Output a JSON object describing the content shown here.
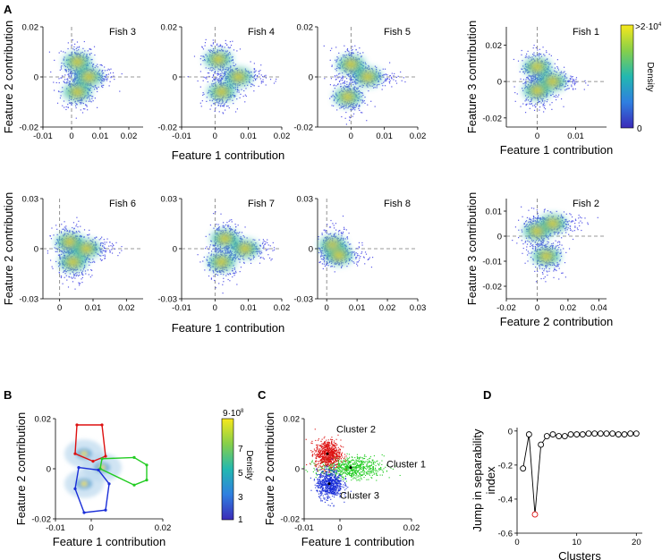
{
  "figure": {
    "panel_labels": {
      "A": "A",
      "B": "B",
      "C": "C",
      "D": "D"
    },
    "colorbar_A": {
      "label": "Density",
      "max_label": ">2",
      "max_exp": "·10",
      "max_pow": "4",
      "min_label": "0"
    },
    "colorbar_B": {
      "label": "Density",
      "ticks": [
        "9",
        "7",
        "5",
        "3",
        "1"
      ],
      "exp_label": "·10",
      "exp_pow": "8"
    },
    "colors": {
      "scatter_point": "#5a5ae8",
      "density_low": "#3b4cc0",
      "density_mid": "#27b8b0",
      "density_high": "#f2e51d",
      "cluster_1": "#22cc22",
      "cluster_2": "#dd1111",
      "cluster_3": "#1a2ed8",
      "highlight": "#dd1111"
    }
  },
  "chart_data": [
    {
      "id": "fish3",
      "type": "scatter",
      "title": "Fish 3",
      "ylabel": "Feature 2 contribution",
      "xlabel": "",
      "xlim": [
        -0.01,
        0.025
      ],
      "ylim": [
        -0.02,
        0.02
      ],
      "xticks": [
        "-0.01",
        "0",
        "0.01",
        "0.02"
      ],
      "yticks": [
        "0.02",
        "0",
        "-0.02"
      ],
      "hotspots": [
        {
          "x": 0.002,
          "y": 0.006
        },
        {
          "x": 0.006,
          "y": 0.0
        },
        {
          "x": 0.002,
          "y": -0.006
        }
      ]
    },
    {
      "id": "fish4",
      "type": "scatter",
      "title": "Fish 4",
      "ylabel": "",
      "xlabel": "",
      "xlim": [
        -0.01,
        0.02
      ],
      "ylim": [
        -0.02,
        0.02
      ],
      "xticks": [
        "-0.01",
        "0",
        "0.01",
        "0.02"
      ],
      "yticks": [
        "0.02",
        "0",
        "-0.02"
      ],
      "hotspots": [
        {
          "x": 0.001,
          "y": 0.007
        },
        {
          "x": 0.007,
          "y": 0.0
        },
        {
          "x": 0.002,
          "y": -0.006
        }
      ]
    },
    {
      "id": "fish5",
      "type": "scatter",
      "title": "Fish 5",
      "ylabel": "",
      "xlabel": "",
      "xlim": [
        -0.01,
        0.02
      ],
      "ylim": [
        -0.02,
        0.02
      ],
      "xticks": [
        "0",
        "0.01",
        "0.02"
      ],
      "yticks": [
        "0.02",
        "0",
        "-0.02"
      ],
      "hotspots": [
        {
          "x": 0.0,
          "y": 0.005
        },
        {
          "x": 0.005,
          "y": 0.0
        },
        {
          "x": -0.001,
          "y": -0.008
        }
      ]
    },
    {
      "id": "fish1",
      "type": "scatter",
      "title": "Fish 1",
      "ylabel": "Feature 3 contribution",
      "xlabel": "Feature 1 contribution",
      "xlim": [
        -0.008,
        0.018
      ],
      "ylim": [
        -0.025,
        0.03
      ],
      "xticks": [
        "0",
        "0.01"
      ],
      "yticks": [
        "0.02",
        "0",
        "-0.02"
      ],
      "hotspots": [
        {
          "x": 0.0,
          "y": 0.008
        },
        {
          "x": 0.004,
          "y": 0.0
        },
        {
          "x": 0.0,
          "y": -0.005
        }
      ]
    },
    {
      "id": "fish6",
      "type": "scatter",
      "title": "Fish 6",
      "ylabel": "Feature 2 contribution",
      "xlabel": "",
      "xlim": [
        -0.005,
        0.025
      ],
      "ylim": [
        -0.03,
        0.03
      ],
      "xticks": [
        "0",
        "0.01",
        "0.02"
      ],
      "yticks": [
        "0.03",
        "0",
        "-0.03"
      ],
      "hotspots": [
        {
          "x": 0.003,
          "y": 0.004
        },
        {
          "x": 0.008,
          "y": 0.0
        },
        {
          "x": 0.004,
          "y": -0.008
        }
      ]
    },
    {
      "id": "fish7",
      "type": "scatter",
      "title": "Fish 7",
      "ylabel": "",
      "xlabel": "",
      "xlim": [
        -0.01,
        0.02
      ],
      "ylim": [
        -0.03,
        0.03
      ],
      "xticks": [
        "-0.01",
        "0",
        "0.01",
        "0.02"
      ],
      "yticks": [
        "0.03",
        "0",
        "-0.03"
      ],
      "hotspots": [
        {
          "x": 0.003,
          "y": 0.006
        },
        {
          "x": 0.009,
          "y": 0.0
        },
        {
          "x": 0.002,
          "y": -0.008
        }
      ]
    },
    {
      "id": "fish8",
      "type": "scatter",
      "title": "Fish 8",
      "ylabel": "",
      "xlabel": "",
      "xlim": [
        -0.003,
        0.03
      ],
      "ylim": [
        -0.03,
        0.03
      ],
      "xticks": [
        "0",
        "0.01",
        "0.02",
        "0.03"
      ],
      "yticks": [
        "0.03",
        "0",
        "-0.03"
      ],
      "hotspots": [
        {
          "x": 0.002,
          "y": 0.002
        },
        {
          "x": 0.004,
          "y": -0.004
        }
      ]
    },
    {
      "id": "fish2",
      "type": "scatter",
      "title": "Fish 2",
      "ylabel": "Feature 3 contribution",
      "xlabel": "Feature 2 contribution",
      "xlim": [
        -0.02,
        0.045
      ],
      "ylim": [
        -0.025,
        0.015
      ],
      "xticks": [
        "-0.02",
        "0",
        "0.02",
        "0.04"
      ],
      "yticks": [
        "0.01",
        "0",
        "-0.01",
        "-0.02"
      ],
      "hotspots": [
        {
          "x": 0.0,
          "y": 0.002
        },
        {
          "x": 0.01,
          "y": 0.005
        },
        {
          "x": 0.006,
          "y": -0.008
        }
      ]
    },
    {
      "id": "rowlabel_A1",
      "type": "label",
      "xlabel": "Feature 1 contribution"
    },
    {
      "id": "rowlabel_A2",
      "type": "label",
      "xlabel": "Feature 1 contribution"
    },
    {
      "id": "panelB",
      "type": "scatter",
      "title": "",
      "ylabel": "Feature 2 contribution",
      "xlabel": "Feature 1 contribution",
      "xlim": [
        -0.01,
        0.02
      ],
      "ylim": [
        -0.02,
        0.02
      ],
      "xticks": [
        "-0.01",
        "0",
        "0.02"
      ],
      "yticks": [
        "0.02",
        "0",
        "-0.02"
      ],
      "polygons": [
        {
          "name": "",
          "color": "#dd1111",
          "points": [
            [
              -0.004,
              0.0175
            ],
            [
              0.003,
              0.0175
            ],
            [
              0.004,
              0.005
            ],
            [
              0.0005,
              0.003
            ],
            [
              -0.0045,
              0.006
            ]
          ]
        },
        {
          "name": "",
          "color": "#22cc22",
          "points": [
            [
              0.003,
              0.004
            ],
            [
              0.012,
              0.0045
            ],
            [
              0.0155,
              0.0015
            ],
            [
              0.0155,
              -0.0045
            ],
            [
              0.012,
              -0.0065
            ],
            [
              0.0025,
              0.0
            ]
          ]
        },
        {
          "name": "",
          "color": "#1a2ed8",
          "points": [
            [
              -0.0035,
              0.0005
            ],
            [
              0.002,
              -0.0005
            ],
            [
              0.005,
              -0.006
            ],
            [
              0.004,
              -0.0165
            ],
            [
              -0.002,
              -0.0175
            ],
            [
              -0.0045,
              -0.008
            ]
          ]
        }
      ]
    },
    {
      "id": "panelC",
      "type": "scatter",
      "title": "",
      "ylabel": "Feature 2 contribution",
      "xlabel": "Feature 1 contribution",
      "xlim": [
        -0.01,
        0.02
      ],
      "ylim": [
        -0.02,
        0.02
      ],
      "xticks": [
        "-0.01",
        "0",
        "0.02"
      ],
      "yticks": [
        "0.02",
        "0",
        "-0.02"
      ],
      "series": [
        {
          "name": "Cluster 1",
          "color": "#22cc22",
          "center": [
            0.003,
            0.0005
          ]
        },
        {
          "name": "Cluster 2",
          "color": "#dd1111",
          "center": [
            -0.0035,
            0.006
          ]
        },
        {
          "name": "Cluster 3",
          "color": "#1a2ed8",
          "center": [
            -0.003,
            -0.006
          ]
        }
      ]
    },
    {
      "id": "panelD",
      "type": "line",
      "title": "",
      "ylabel": "Jump in separability index",
      "ylabel_lines": [
        "Jump in separability",
        "index"
      ],
      "xlabel": "Clusters",
      "xlim": [
        0,
        21
      ],
      "ylim": [
        -0.6,
        0.02
      ],
      "xticks": [
        "0",
        "10",
        "20"
      ],
      "yticks": [
        "0",
        "-0.2",
        "-0.4",
        "-0.6"
      ],
      "x": [
        1,
        2,
        3,
        4,
        5,
        6,
        7,
        8,
        9,
        10,
        11,
        12,
        13,
        14,
        15,
        16,
        17,
        18,
        19,
        20
      ],
      "y": [
        -0.22,
        -0.02,
        -0.49,
        -0.08,
        -0.03,
        -0.02,
        -0.03,
        -0.03,
        -0.02,
        -0.02,
        -0.02,
        -0.015,
        -0.015,
        -0.015,
        -0.015,
        -0.015,
        -0.02,
        -0.02,
        -0.015,
        -0.015
      ],
      "highlight_index": 2
    }
  ]
}
